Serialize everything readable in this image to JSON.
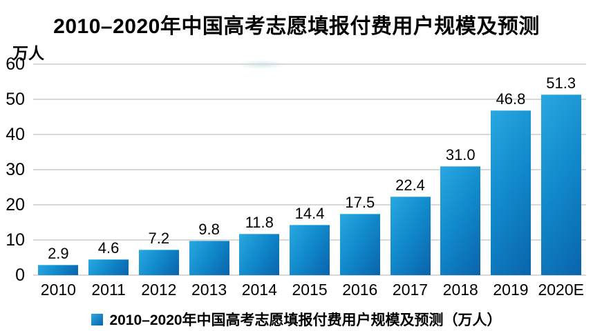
{
  "chart": {
    "title": "2010–2020年中国高考志愿填报付费用户规模及预测",
    "unit_label": "万人",
    "legend_label": "2010–2020年中国高考志愿填报付费用户规模及预测（万人）"
  },
  "chart_data": {
    "type": "bar",
    "title": "2010–2020年中国高考志愿填报付费用户规模及预测",
    "categories": [
      "2010",
      "2011",
      "2012",
      "2013",
      "2014",
      "2015",
      "2016",
      "2017",
      "2018",
      "2019",
      "2020E"
    ],
    "values": [
      2.9,
      4.6,
      7.2,
      9.8,
      11.8,
      14.4,
      17.5,
      22.4,
      31.0,
      46.8,
      51.3
    ],
    "value_labels": [
      "2.9",
      "4.6",
      "7.2",
      "9.8",
      "11.8",
      "14.4",
      "17.5",
      "22.4",
      "31.0",
      "46.8",
      "51.3"
    ],
    "xlabel": "",
    "ylabel": "万人",
    "ylim": [
      0,
      60
    ],
    "yticks": [
      0,
      10,
      20,
      30,
      40,
      50,
      60
    ],
    "grid": true,
    "legend_position": "bottom",
    "legend_entries": [
      "2010–2020年中国高考志愿填报付费用户规模及预测（万人）"
    ],
    "colors": {
      "bar_gradient_start": "#29a8e1",
      "bar_gradient_mid": "#1189cb",
      "bar_gradient_end": "#0a63ab",
      "gridline": "#d8d8d8",
      "text": "#000000",
      "background": "#ffffff"
    }
  }
}
